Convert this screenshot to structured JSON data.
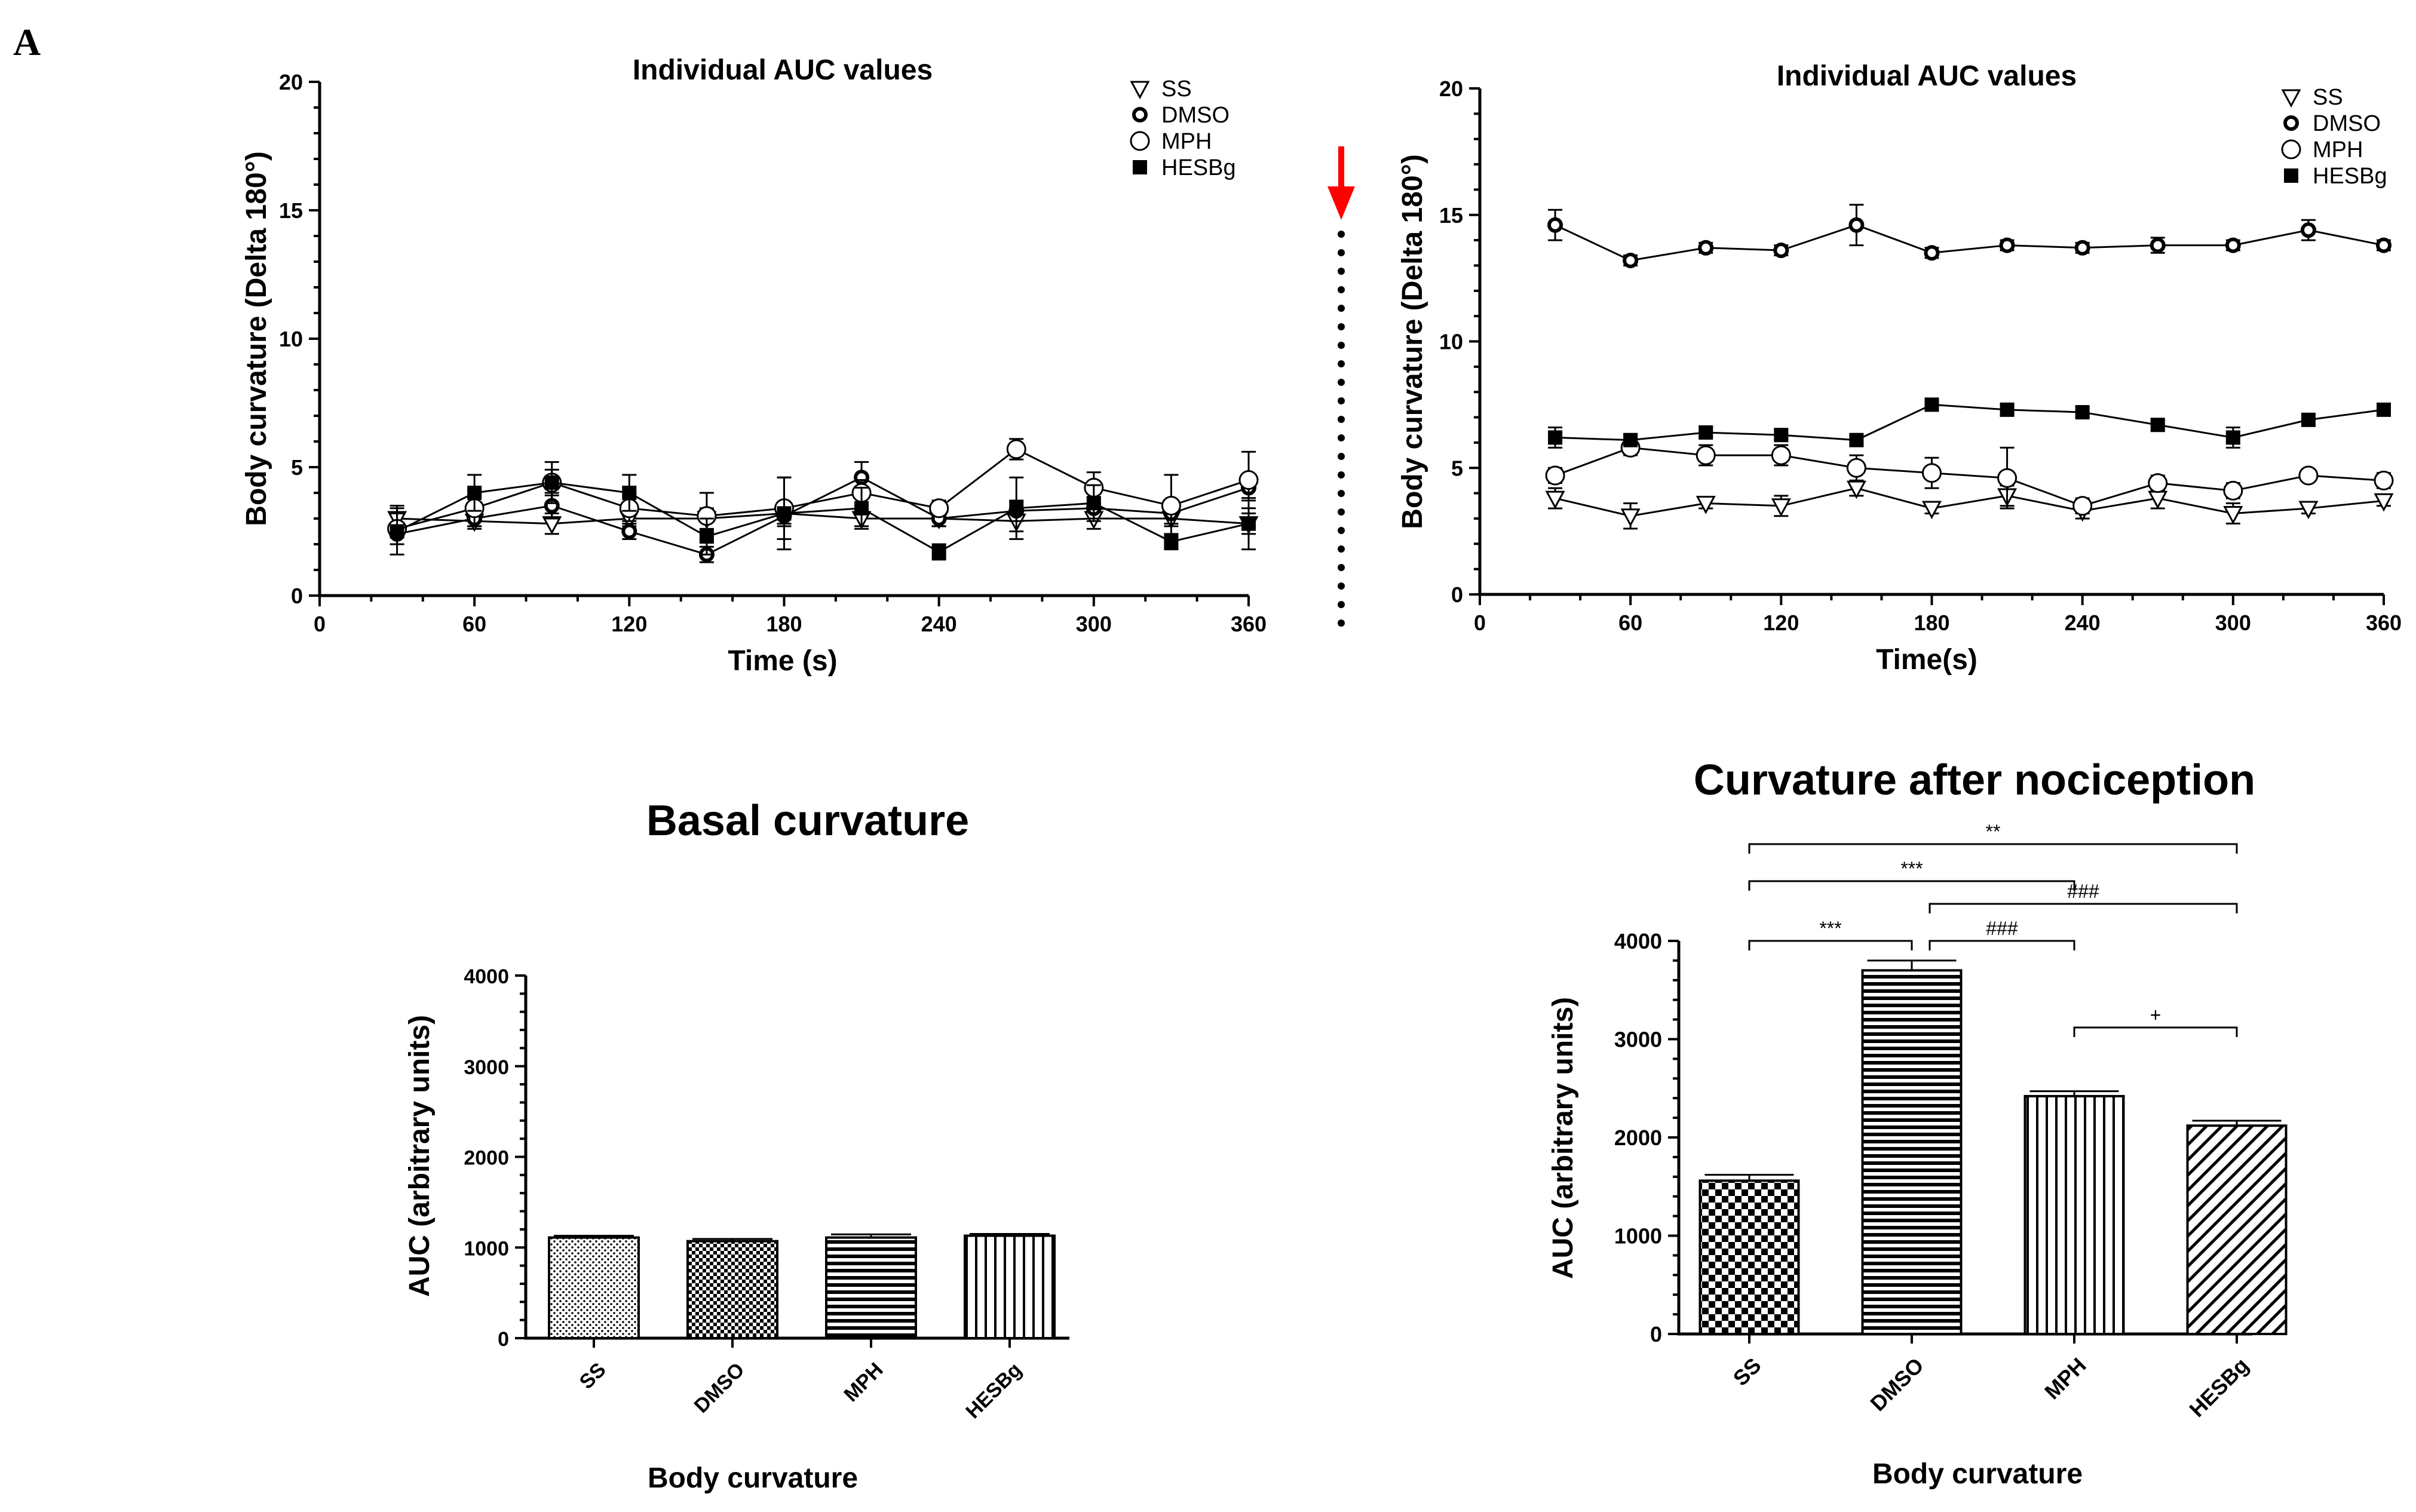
{
  "panel_label": "A",
  "colors": {
    "ink": "#000000",
    "arrow": "#ff0000",
    "background": "#ffffff"
  },
  "chart_data": [
    {
      "id": "individual-auc-basal",
      "type": "line",
      "title": "Individual AUC values",
      "xlabel": "Time (s)",
      "ylabel": "Body curvature (Delta 180°)",
      "xlim": [
        0,
        360
      ],
      "ylim": [
        0,
        20
      ],
      "xticks": [
        0,
        60,
        120,
        180,
        240,
        300,
        360
      ],
      "yticks": [
        0,
        5,
        10,
        15,
        20
      ],
      "legend_position": "top-right",
      "x": [
        30,
        60,
        90,
        120,
        150,
        180,
        210,
        240,
        270,
        300,
        330,
        360
      ],
      "series": [
        {
          "name": "SS",
          "marker": "triangle-down-open",
          "values": [
            3.0,
            2.9,
            2.8,
            3.0,
            3.0,
            3.2,
            3.0,
            3.0,
            2.9,
            3.0,
            3.0,
            2.8
          ],
          "errors": [
            0.5,
            0.3,
            0.4,
            0.3,
            0.4,
            0.4,
            0.3,
            0.3,
            0.4,
            0.4,
            0.3,
            0.4
          ]
        },
        {
          "name": "DMSO",
          "marker": "circle-dot",
          "values": [
            2.4,
            3.0,
            3.5,
            2.5,
            1.6,
            3.1,
            4.6,
            3.0,
            3.3,
            3.4,
            3.2,
            4.2
          ],
          "errors": [
            0.4,
            0.3,
            0.5,
            0.3,
            0.3,
            0.4,
            0.6,
            0.3,
            0.4,
            0.4,
            0.4,
            0.5
          ]
        },
        {
          "name": "MPH",
          "marker": "circle-open",
          "values": [
            2.6,
            3.4,
            4.4,
            3.4,
            3.1,
            3.4,
            4.0,
            3.4,
            5.7,
            4.2,
            3.5,
            4.5
          ],
          "errors": [
            0.6,
            0.7,
            0.5,
            0.5,
            0.9,
            1.2,
            0.5,
            0.3,
            0.4,
            0.6,
            1.2,
            1.1
          ]
        },
        {
          "name": "HESBg",
          "marker": "square-filled",
          "values": [
            2.5,
            4.0,
            4.4,
            4.0,
            2.3,
            3.2,
            3.4,
            1.7,
            3.4,
            3.6,
            2.1,
            2.8
          ],
          "errors": [
            0.9,
            0.7,
            0.8,
            0.7,
            0.7,
            1.4,
            0.8,
            0.3,
            1.2,
            0.7,
            0.3,
            1.0
          ]
        }
      ]
    },
    {
      "id": "individual-auc-nociception",
      "type": "line",
      "title": "Individual AUC values",
      "xlabel": "Time(s)",
      "ylabel": "Body curvature (Delta 180°)",
      "xlim": [
        0,
        360
      ],
      "ylim": [
        0,
        20
      ],
      "xticks": [
        0,
        60,
        120,
        180,
        240,
        300,
        360
      ],
      "yticks": [
        0,
        5,
        10,
        15,
        20
      ],
      "legend_position": "top-right",
      "x": [
        30,
        60,
        90,
        120,
        150,
        180,
        210,
        240,
        270,
        300,
        330,
        360
      ],
      "series": [
        {
          "name": "SS",
          "marker": "triangle-down-open",
          "values": [
            3.8,
            3.1,
            3.6,
            3.5,
            4.2,
            3.4,
            3.9,
            3.3,
            3.8,
            3.2,
            3.4,
            3.7
          ],
          "errors": [
            0.4,
            0.5,
            0.2,
            0.4,
            0.3,
            0.2,
            0.4,
            0.3,
            0.4,
            0.4,
            0.2,
            0.2
          ]
        },
        {
          "name": "DMSO",
          "marker": "circle-dot",
          "values": [
            14.6,
            13.2,
            13.7,
            13.6,
            14.6,
            13.5,
            13.8,
            13.7,
            13.8,
            13.8,
            14.4,
            13.8
          ],
          "errors": [
            0.6,
            0.2,
            0.2,
            0.2,
            0.8,
            0.2,
            0.2,
            0.2,
            0.3,
            0.2,
            0.4,
            0.2
          ]
        },
        {
          "name": "MPH",
          "marker": "circle-open",
          "values": [
            4.7,
            5.8,
            5.5,
            5.5,
            5.0,
            4.8,
            4.6,
            3.5,
            4.4,
            4.1,
            4.7,
            4.5
          ],
          "errors": [
            0.3,
            0.3,
            0.4,
            0.4,
            0.5,
            0.6,
            1.2,
            0.3,
            0.3,
            0.3,
            0.2,
            0.3
          ]
        },
        {
          "name": "HESBg",
          "marker": "square-filled",
          "values": [
            6.2,
            6.1,
            6.4,
            6.3,
            6.1,
            7.5,
            7.3,
            7.2,
            6.7,
            6.2,
            6.9,
            7.3
          ],
          "errors": [
            0.4,
            0.2,
            0.2,
            0.2,
            0.2,
            0.2,
            0.2,
            0.2,
            0.2,
            0.4,
            0.2,
            0.2
          ]
        }
      ]
    },
    {
      "id": "basal-curvature",
      "type": "bar",
      "title": "Basal curvature",
      "xlabel": "Body curvature",
      "ylabel": "AUC (arbitrary units)",
      "ylim": [
        0,
        4000
      ],
      "yticks": [
        0,
        1000,
        2000,
        3000,
        4000
      ],
      "categories": [
        "SS",
        "DMSO",
        "MPH",
        "HESBg"
      ],
      "patterns": [
        "fine-dots",
        "checker-fine",
        "horizontal-lines",
        "vertical-lines"
      ],
      "values": [
        1110,
        1070,
        1110,
        1130
      ],
      "errors": [
        20,
        25,
        35,
        20
      ]
    },
    {
      "id": "curvature-after-nociception",
      "type": "bar",
      "title": "Curvature after nociception",
      "xlabel": "Body curvature",
      "ylabel": "AUC (arbitrary units)",
      "ylim": [
        0,
        4000
      ],
      "yticks": [
        0,
        1000,
        2000,
        3000,
        4000
      ],
      "categories": [
        "SS",
        "DMSO",
        "MPH",
        "HESBg"
      ],
      "patterns": [
        "checker-coarse",
        "horizontal-lines",
        "vertical-lines",
        "diagonal-lines"
      ],
      "values": [
        1560,
        3700,
        2420,
        2120
      ],
      "errors": [
        60,
        100,
        50,
        50
      ],
      "annotations": [
        {
          "from": 0,
          "to": 3,
          "label": "**"
        },
        {
          "from": 0,
          "to": 2,
          "label": "***"
        },
        {
          "from": 1,
          "to": 3,
          "label": "###"
        },
        {
          "from": 0,
          "to": 1,
          "label": "***"
        },
        {
          "from": 1,
          "to": 2,
          "label": "###"
        },
        {
          "from": 2,
          "to": 3,
          "label": "+"
        }
      ]
    }
  ]
}
